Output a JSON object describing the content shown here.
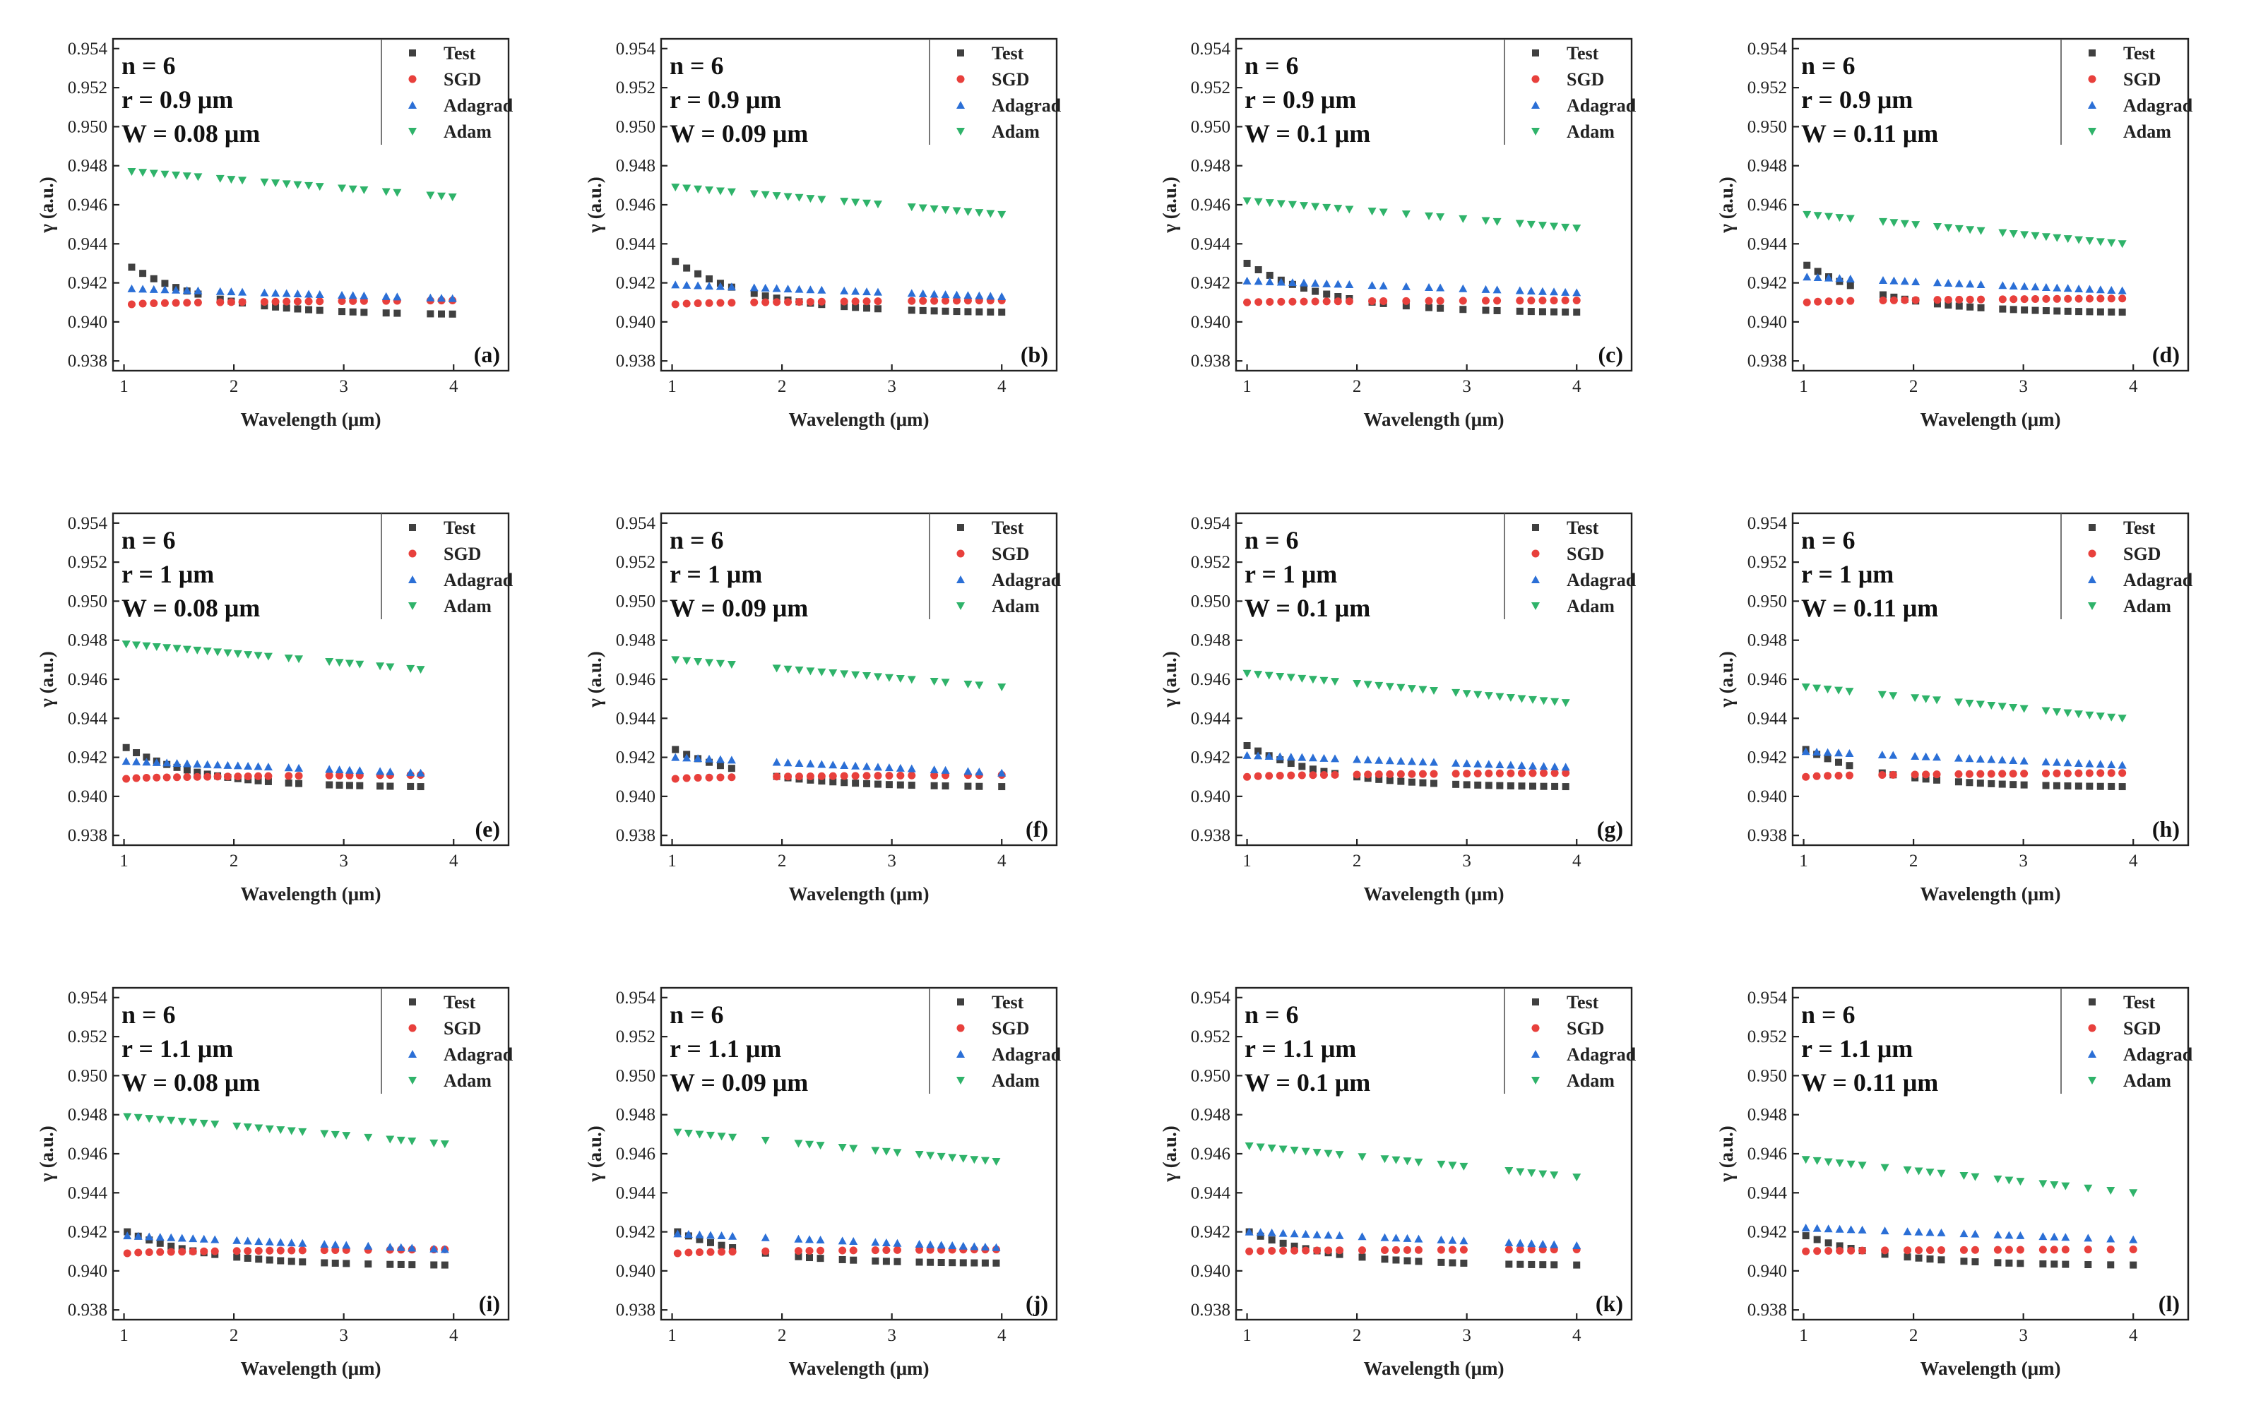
{
  "figure": {
    "y_axis_label": "γ (a.u.)",
    "x_axis_label": "Wavelength (μm)"
  },
  "series_style": [
    {
      "name": "Test",
      "marker": "square",
      "color": "#404040"
    },
    {
      "name": "SGD",
      "marker": "circle",
      "color": "#e8403c"
    },
    {
      "name": "Adagrad",
      "marker": "triangle-up",
      "color": "#2b6fd6"
    },
    {
      "name": "Adam",
      "marker": "triangle-down",
      "color": "#2fb36a"
    }
  ],
  "chart_data": [
    {
      "type": "scatter",
      "panel": "(a)",
      "n_label": "n = 6",
      "r_label": "r = 0.9 μm",
      "w_label": "W = 0.08 μm",
      "xlim": [
        0.9,
        4.5
      ],
      "ylim": [
        0.9375,
        0.9545
      ],
      "xticks": [
        "1",
        "2",
        "3",
        "4"
      ],
      "yticks": [
        "0.938",
        "0.940",
        "0.942",
        "0.944",
        "0.946",
        "0.948",
        "0.950",
        "0.952",
        "0.954"
      ],
      "xlabel": "Wavelength (μm)",
      "ylabel": "γ (a.u.)",
      "legend": [
        "Test",
        "SGD",
        "Adagrad",
        "Adam"
      ],
      "x_range": [
        1.07,
        3.99
      ],
      "series": [
        {
          "name": "Test",
          "start": 0.9428,
          "end": 0.9404
        },
        {
          "name": "SGD",
          "start": 0.9409,
          "end": 0.9411
        },
        {
          "name": "Adagrad",
          "start": 0.9417,
          "end": 0.9412
        },
        {
          "name": "Adam",
          "start": 0.9477,
          "end": 0.9464
        }
      ]
    },
    {
      "type": "scatter",
      "panel": "(b)",
      "n_label": "n = 6",
      "r_label": "r = 0.9 μm",
      "w_label": "W = 0.09 μm",
      "xlim": [
        0.9,
        4.5
      ],
      "ylim": [
        0.9375,
        0.9545
      ],
      "xticks": [
        "1",
        "2",
        "3",
        "4"
      ],
      "yticks": [
        "0.938",
        "0.940",
        "0.942",
        "0.944",
        "0.946",
        "0.948",
        "0.950",
        "0.952",
        "0.954"
      ],
      "xlabel": "Wavelength (μm)",
      "ylabel": "γ (a.u.)",
      "legend": [
        "Test",
        "SGD",
        "Adagrad",
        "Adam"
      ],
      "x_range": [
        1.03,
        4.0
      ],
      "series": [
        {
          "name": "Test",
          "start": 0.9431,
          "end": 0.9405
        },
        {
          "name": "SGD",
          "start": 0.9409,
          "end": 0.9411
        },
        {
          "name": "Adagrad",
          "start": 0.9419,
          "end": 0.9413
        },
        {
          "name": "Adam",
          "start": 0.9469,
          "end": 0.9455
        }
      ]
    },
    {
      "type": "scatter",
      "panel": "(c)",
      "n_label": "n = 6",
      "r_label": "r = 0.9 μm",
      "w_label": "W = 0.1 μm",
      "xlim": [
        0.9,
        4.5
      ],
      "ylim": [
        0.9375,
        0.9545
      ],
      "xticks": [
        "1",
        "2",
        "3",
        "4"
      ],
      "yticks": [
        "0.938",
        "0.940",
        "0.942",
        "0.944",
        "0.946",
        "0.948",
        "0.950",
        "0.952",
        "0.954"
      ],
      "xlabel": "Wavelength (μm)",
      "ylabel": "γ (a.u.)",
      "legend": [
        "Test",
        "SGD",
        "Adagrad",
        "Adam"
      ],
      "x_range": [
        1.0,
        4.0
      ],
      "series": [
        {
          "name": "Test",
          "start": 0.943,
          "end": 0.9405
        },
        {
          "name": "SGD",
          "start": 0.941,
          "end": 0.9411
        },
        {
          "name": "Adagrad",
          "start": 0.9421,
          "end": 0.9415
        },
        {
          "name": "Adam",
          "start": 0.9462,
          "end": 0.9448
        }
      ]
    },
    {
      "type": "scatter",
      "panel": "(d)",
      "n_label": "n = 6",
      "r_label": "r = 0.9 μm",
      "w_label": "W = 0.11 μm",
      "xlim": [
        0.9,
        4.5
      ],
      "ylim": [
        0.9375,
        0.9545
      ],
      "xticks": [
        "1",
        "2",
        "3",
        "4"
      ],
      "yticks": [
        "0.938",
        "0.940",
        "0.942",
        "0.944",
        "0.946",
        "0.948",
        "0.950",
        "0.952",
        "0.954"
      ],
      "xlabel": "Wavelength (μm)",
      "ylabel": "γ (a.u.)",
      "legend": [
        "Test",
        "SGD",
        "Adagrad",
        "Adam"
      ],
      "x_range": [
        1.03,
        3.9
      ],
      "series": [
        {
          "name": "Test",
          "start": 0.9429,
          "end": 0.9405
        },
        {
          "name": "SGD",
          "start": 0.941,
          "end": 0.9412
        },
        {
          "name": "Adagrad",
          "start": 0.9423,
          "end": 0.9416
        },
        {
          "name": "Adam",
          "start": 0.9455,
          "end": 0.944
        }
      ]
    },
    {
      "type": "scatter",
      "panel": "(e)",
      "n_label": "n = 6",
      "r_label": "r = 1 μm",
      "w_label": "W = 0.08 μm",
      "xlim": [
        0.9,
        4.5
      ],
      "ylim": [
        0.9375,
        0.9545
      ],
      "xticks": [
        "1",
        "2",
        "3",
        "4"
      ],
      "yticks": [
        "0.938",
        "0.940",
        "0.942",
        "0.944",
        "0.946",
        "0.948",
        "0.950",
        "0.952",
        "0.954"
      ],
      "xlabel": "Wavelength (μm)",
      "ylabel": "γ (a.u.)",
      "legend": [
        "Test",
        "SGD",
        "Adagrad",
        "Adam"
      ],
      "x_range": [
        1.02,
        3.7
      ],
      "series": [
        {
          "name": "Test",
          "start": 0.9425,
          "end": 0.9405
        },
        {
          "name": "SGD",
          "start": 0.9409,
          "end": 0.9411
        },
        {
          "name": "Adagrad",
          "start": 0.9418,
          "end": 0.9412
        },
        {
          "name": "Adam",
          "start": 0.9478,
          "end": 0.9465
        }
      ]
    },
    {
      "type": "scatter",
      "panel": "(f)",
      "n_label": "n = 6",
      "r_label": "r = 1 μm",
      "w_label": "W = 0.09 μm",
      "xlim": [
        0.9,
        4.5
      ],
      "ylim": [
        0.9375,
        0.9545
      ],
      "xticks": [
        "1",
        "2",
        "3",
        "4"
      ],
      "yticks": [
        "0.938",
        "0.940",
        "0.942",
        "0.944",
        "0.946",
        "0.948",
        "0.950",
        "0.952",
        "0.954"
      ],
      "xlabel": "Wavelength (μm)",
      "ylabel": "γ (a.u.)",
      "legend": [
        "Test",
        "SGD",
        "Adagrad",
        "Adam"
      ],
      "x_range": [
        1.03,
        4.0
      ],
      "series": [
        {
          "name": "Test",
          "start": 0.9424,
          "end": 0.9405
        },
        {
          "name": "SGD",
          "start": 0.9409,
          "end": 0.9411
        },
        {
          "name": "Adagrad",
          "start": 0.942,
          "end": 0.9412
        },
        {
          "name": "Adam",
          "start": 0.947,
          "end": 0.9456
        }
      ]
    },
    {
      "type": "scatter",
      "panel": "(g)",
      "n_label": "n = 6",
      "r_label": "r = 1 μm",
      "w_label": "W = 0.1 μm",
      "xlim": [
        0.9,
        4.5
      ],
      "ylim": [
        0.9375,
        0.9545
      ],
      "xticks": [
        "1",
        "2",
        "3",
        "4"
      ],
      "yticks": [
        "0.938",
        "0.940",
        "0.942",
        "0.944",
        "0.946",
        "0.948",
        "0.950",
        "0.952",
        "0.954"
      ],
      "xlabel": "Wavelength (μm)",
      "ylabel": "γ (a.u.)",
      "legend": [
        "Test",
        "SGD",
        "Adagrad",
        "Adam"
      ],
      "x_range": [
        1.0,
        3.9
      ],
      "series": [
        {
          "name": "Test",
          "start": 0.9426,
          "end": 0.9405
        },
        {
          "name": "SGD",
          "start": 0.941,
          "end": 0.9412
        },
        {
          "name": "Adagrad",
          "start": 0.9421,
          "end": 0.9415
        },
        {
          "name": "Adam",
          "start": 0.9463,
          "end": 0.9448
        }
      ]
    },
    {
      "type": "scatter",
      "panel": "(h)",
      "n_label": "n = 6",
      "r_label": "r = 1 μm",
      "w_label": "W = 0.11 μm",
      "xlim": [
        0.9,
        4.5
      ],
      "ylim": [
        0.9375,
        0.9545
      ],
      "xticks": [
        "1",
        "2",
        "3",
        "4"
      ],
      "yticks": [
        "0.938",
        "0.940",
        "0.942",
        "0.944",
        "0.946",
        "0.948",
        "0.950",
        "0.952",
        "0.954"
      ],
      "xlabel": "Wavelength (μm)",
      "ylabel": "γ (a.u.)",
      "legend": [
        "Test",
        "SGD",
        "Adagrad",
        "Adam"
      ],
      "x_range": [
        1.02,
        3.9
      ],
      "series": [
        {
          "name": "Test",
          "start": 0.9424,
          "end": 0.9405
        },
        {
          "name": "SGD",
          "start": 0.941,
          "end": 0.9412
        },
        {
          "name": "Adagrad",
          "start": 0.9423,
          "end": 0.9416
        },
        {
          "name": "Adam",
          "start": 0.9456,
          "end": 0.944
        }
      ]
    },
    {
      "type": "scatter",
      "panel": "(i)",
      "n_label": "n = 6",
      "r_label": "r = 1.1 μm",
      "w_label": "W = 0.08 μm",
      "xlim": [
        0.9,
        4.5
      ],
      "ylim": [
        0.9375,
        0.9545
      ],
      "xticks": [
        "1",
        "2",
        "3",
        "4"
      ],
      "yticks": [
        "0.938",
        "0.940",
        "0.942",
        "0.944",
        "0.946",
        "0.948",
        "0.950",
        "0.952",
        "0.954"
      ],
      "xlabel": "Wavelength (μm)",
      "ylabel": "γ (a.u.)",
      "legend": [
        "Test",
        "SGD",
        "Adagrad",
        "Adam"
      ],
      "x_range": [
        1.03,
        3.92
      ],
      "series": [
        {
          "name": "Test",
          "start": 0.942,
          "end": 0.9403
        },
        {
          "name": "SGD",
          "start": 0.9409,
          "end": 0.9411
        },
        {
          "name": "Adagrad",
          "start": 0.9418,
          "end": 0.9411
        },
        {
          "name": "Adam",
          "start": 0.9479,
          "end": 0.9465
        }
      ]
    },
    {
      "type": "scatter",
      "panel": "(j)",
      "n_label": "n = 6",
      "r_label": "r = 1.1 μm",
      "w_label": "W = 0.09 μm",
      "xlim": [
        0.9,
        4.5
      ],
      "ylim": [
        0.9375,
        0.9545
      ],
      "xticks": [
        "1",
        "2",
        "3",
        "4"
      ],
      "yticks": [
        "0.938",
        "0.940",
        "0.942",
        "0.944",
        "0.946",
        "0.948",
        "0.950",
        "0.952",
        "0.954"
      ],
      "xlabel": "Wavelength (μm)",
      "ylabel": "γ (a.u.)",
      "legend": [
        "Test",
        "SGD",
        "Adagrad",
        "Adam"
      ],
      "x_range": [
        1.05,
        3.95
      ],
      "series": [
        {
          "name": "Test",
          "start": 0.942,
          "end": 0.9404
        },
        {
          "name": "SGD",
          "start": 0.9409,
          "end": 0.9411
        },
        {
          "name": "Adagrad",
          "start": 0.9419,
          "end": 0.9412
        },
        {
          "name": "Adam",
          "start": 0.9471,
          "end": 0.9456
        }
      ]
    },
    {
      "type": "scatter",
      "panel": "(k)",
      "n_label": "n = 6",
      "r_label": "r = 1.1 μm",
      "w_label": "W = 0.1 μm",
      "xlim": [
        0.9,
        4.5
      ],
      "ylim": [
        0.9375,
        0.9545
      ],
      "xticks": [
        "1",
        "2",
        "3",
        "4"
      ],
      "yticks": [
        "0.938",
        "0.940",
        "0.942",
        "0.944",
        "0.946",
        "0.948",
        "0.950",
        "0.952",
        "0.954"
      ],
      "xlabel": "Wavelength (μm)",
      "ylabel": "γ (a.u.)",
      "legend": [
        "Test",
        "SGD",
        "Adagrad",
        "Adam"
      ],
      "x_range": [
        1.02,
        4.0
      ],
      "series": [
        {
          "name": "Test",
          "start": 0.942,
          "end": 0.9403
        },
        {
          "name": "SGD",
          "start": 0.941,
          "end": 0.9411
        },
        {
          "name": "Adagrad",
          "start": 0.942,
          "end": 0.9413
        },
        {
          "name": "Adam",
          "start": 0.9464,
          "end": 0.9448
        }
      ]
    },
    {
      "type": "scatter",
      "panel": "(l)",
      "n_label": "n = 6",
      "r_label": "r = 1.1 μm",
      "w_label": "W = 0.11 μm",
      "xlim": [
        0.9,
        4.5
      ],
      "ylim": [
        0.9375,
        0.9545
      ],
      "xticks": [
        "1",
        "2",
        "3",
        "4"
      ],
      "yticks": [
        "0.938",
        "0.940",
        "0.942",
        "0.944",
        "0.946",
        "0.948",
        "0.950",
        "0.952",
        "0.954"
      ],
      "xlabel": "Wavelength (μm)",
      "ylabel": "γ (a.u.)",
      "legend": [
        "Test",
        "SGD",
        "Adagrad",
        "Adam"
      ],
      "x_range": [
        1.02,
        4.0
      ],
      "series": [
        {
          "name": "Test",
          "start": 0.9418,
          "end": 0.9403
        },
        {
          "name": "SGD",
          "start": 0.941,
          "end": 0.9411
        },
        {
          "name": "Adagrad",
          "start": 0.9422,
          "end": 0.9416
        },
        {
          "name": "Adam",
          "start": 0.9457,
          "end": 0.944
        }
      ]
    }
  ]
}
